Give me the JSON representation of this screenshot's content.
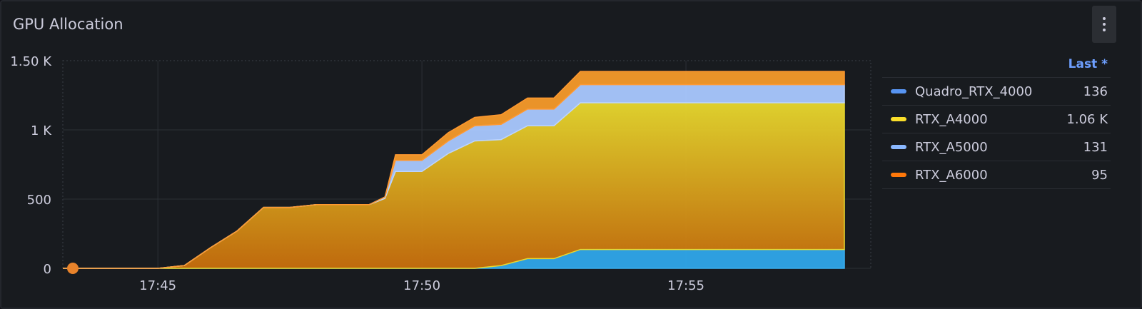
{
  "panel": {
    "title": "GPU Allocation"
  },
  "legend": {
    "header": "Last *",
    "items": [
      {
        "name": "Quadro_RTX_4000",
        "value": "136",
        "color": "#5794f2"
      },
      {
        "name": "RTX_A4000",
        "value": "1.06 K",
        "color": "#fade2a"
      },
      {
        "name": "RTX_A5000",
        "value": "131",
        "color": "#8ab8ff"
      },
      {
        "name": "RTX_A6000",
        "value": "95",
        "color": "#ff780a"
      }
    ]
  },
  "chart_data": {
    "type": "area",
    "stacked": true,
    "x_ticks": [
      "17:45",
      "17:50",
      "17:55"
    ],
    "y_ticks": [
      "0",
      "500",
      "1 K",
      "1.50 K"
    ],
    "ylim": [
      0,
      1500
    ],
    "x_unit": "minutes",
    "xlim": [
      43.2,
      58.5
    ],
    "grid": true,
    "legend_position": "right",
    "x": [
      43.2,
      43.5,
      44.0,
      44.5,
      45.0,
      45.5,
      46.0,
      46.5,
      47.0,
      47.5,
      48.0,
      48.5,
      49.0,
      49.3,
      49.5,
      50.0,
      50.5,
      51.0,
      51.5,
      52.0,
      52.5,
      53.0,
      53.5,
      54.0,
      55.0,
      56.0,
      57.0,
      58.0
    ],
    "series": [
      {
        "name": "Quadro_RTX_4000",
        "values": [
          0,
          0,
          0,
          0,
          0,
          0,
          0,
          0,
          0,
          0,
          0,
          0,
          0,
          0,
          0,
          0,
          0,
          0,
          20,
          70,
          70,
          136,
          136,
          136,
          136,
          136,
          136,
          136
        ]
      },
      {
        "name": "RTX_A4000",
        "values": [
          0,
          0,
          0,
          0,
          0,
          20,
          150,
          270,
          440,
          440,
          460,
          460,
          460,
          505,
          700,
          700,
          830,
          920,
          910,
          960,
          960,
          1060,
          1060,
          1060,
          1060,
          1060,
          1060,
          1060
        ]
      },
      {
        "name": "RTX_A5000",
        "values": [
          0,
          0,
          0,
          0,
          0,
          0,
          0,
          0,
          0,
          0,
          0,
          0,
          0,
          10,
          80,
          80,
          90,
          110,
          110,
          120,
          120,
          131,
          131,
          131,
          131,
          131,
          131,
          131
        ]
      },
      {
        "name": "RTX_A6000",
        "values": [
          0,
          0,
          0,
          0,
          0,
          0,
          0,
          0,
          0,
          0,
          0,
          0,
          0,
          0,
          40,
          40,
          60,
          60,
          70,
          80,
          80,
          95,
          95,
          95,
          95,
          95,
          95,
          95
        ]
      }
    ]
  }
}
